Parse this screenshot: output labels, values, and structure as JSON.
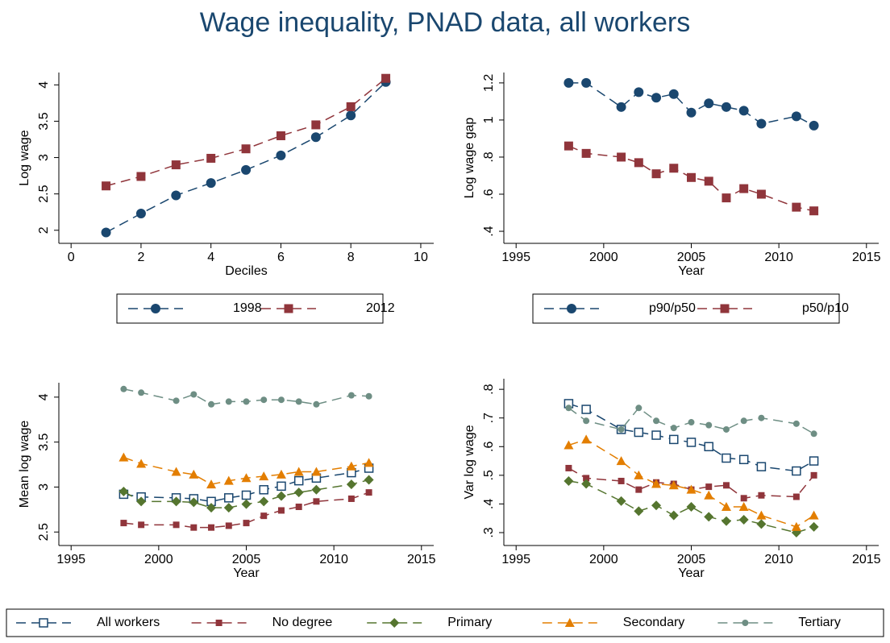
{
  "title": "Wage inequality, PNAD data, all workers",
  "chart_data": [
    {
      "type": "line",
      "xlabel": "Deciles",
      "ylabel": "Log wage",
      "legend": "below",
      "x": [
        1,
        2,
        3,
        4,
        5,
        6,
        7,
        8,
        9
      ],
      "xlim": [
        -0.35,
        10.37
      ],
      "xticks": [
        0,
        2,
        4,
        6,
        8,
        10
      ],
      "ylim": [
        1.82,
        4.17
      ],
      "yticks": [
        2,
        2.5,
        3,
        3.5,
        4
      ],
      "series": [
        {
          "name": "1998",
          "color": "#1a476f",
          "marker": "circle",
          "values": [
            1.97,
            2.23,
            2.48,
            2.65,
            2.83,
            3.03,
            3.28,
            3.58,
            4.04
          ]
        },
        {
          "name": "2012",
          "color": "#90353b",
          "marker": "square",
          "values": [
            2.61,
            2.74,
            2.9,
            2.99,
            3.12,
            3.3,
            3.45,
            3.7,
            4.09
          ]
        }
      ]
    },
    {
      "type": "line",
      "xlabel": "Year",
      "ylabel": "Log wage gap",
      "legend": "below",
      "x": [
        1998,
        1999,
        2001,
        2002,
        2003,
        2004,
        2005,
        2006,
        2007,
        2008,
        2009,
        2011,
        2012
      ],
      "xlim": [
        1994.3,
        2015.7
      ],
      "xticks": [
        1995,
        2000,
        2005,
        2010,
        2015
      ],
      "ylim": [
        0.335,
        1.256
      ],
      "yticks": [
        {
          "value": 0.4,
          "label": ".4"
        },
        {
          "value": 0.6,
          "label": ".6"
        },
        {
          "value": 0.8,
          "label": ".8"
        },
        1,
        1.2
      ],
      "series": [
        {
          "name": "p90/p50",
          "color": "#1a476f",
          "marker": "circle",
          "values": [
            1.2,
            1.2,
            1.07,
            1.15,
            1.12,
            1.14,
            1.04,
            1.09,
            1.07,
            1.05,
            0.98,
            1.02,
            0.97
          ]
        },
        {
          "name": "p50/p10",
          "color": "#90353b",
          "marker": "square",
          "values": [
            0.86,
            0.82,
            0.8,
            0.77,
            0.71,
            0.74,
            0.69,
            0.67,
            0.58,
            0.63,
            0.6,
            0.53,
            0.51
          ]
        }
      ]
    },
    {
      "type": "line",
      "xlabel": "Year",
      "ylabel": "Mean log wage",
      "legend": "page-bottom",
      "x": [
        1998,
        1999,
        2001,
        2002,
        2003,
        2004,
        2005,
        2006,
        2007,
        2008,
        2009,
        2011,
        2012
      ],
      "xlim": [
        1994.3,
        2015.7
      ],
      "xticks": [
        1995,
        2000,
        2005,
        2010,
        2015
      ],
      "ylim": [
        2.35,
        4.16
      ],
      "yticks": [
        2.5,
        3,
        3.5,
        4
      ],
      "series": [
        {
          "name": "All workers",
          "color": "#1a476f",
          "marker": "square-hollow",
          "values": [
            2.92,
            2.89,
            2.88,
            2.87,
            2.84,
            2.88,
            2.91,
            2.97,
            3.01,
            3.07,
            3.1,
            3.16,
            3.21
          ]
        },
        {
          "name": "No degree",
          "color": "#90353b",
          "marker": "square-small",
          "values": [
            2.6,
            2.58,
            2.58,
            2.55,
            2.55,
            2.57,
            2.6,
            2.68,
            2.74,
            2.78,
            2.84,
            2.87,
            2.94
          ]
        },
        {
          "name": "Primary",
          "color": "#55752f",
          "marker": "diamond",
          "values": [
            2.95,
            2.84,
            2.84,
            2.83,
            2.77,
            2.77,
            2.81,
            2.84,
            2.9,
            2.94,
            2.97,
            3.03,
            3.08
          ]
        },
        {
          "name": "Secondary",
          "color": "#e37e00",
          "marker": "triangle",
          "values": [
            3.33,
            3.26,
            3.17,
            3.14,
            3.03,
            3.07,
            3.1,
            3.12,
            3.14,
            3.17,
            3.17,
            3.23,
            3.27
          ]
        },
        {
          "name": "Tertiary",
          "color": "#6e8e84",
          "marker": "circle-small",
          "values": [
            4.09,
            4.05,
            3.96,
            4.03,
            3.92,
            3.95,
            3.95,
            3.97,
            3.97,
            3.95,
            3.92,
            4.02,
            4.01
          ]
        }
      ]
    },
    {
      "type": "line",
      "xlabel": "Year",
      "ylabel": "Var log wage",
      "legend": false,
      "x": [
        1998,
        1999,
        2001,
        2002,
        2003,
        2004,
        2005,
        2006,
        2007,
        2008,
        2009,
        2011,
        2012
      ],
      "xlim": [
        1994.3,
        2015.7
      ],
      "xticks": [
        1995,
        2000,
        2005,
        2010,
        2015
      ],
      "ylim": [
        0.255,
        0.837
      ],
      "yticks": [
        {
          "value": 0.3,
          "label": ".3"
        },
        {
          "value": 0.4,
          "label": ".4"
        },
        {
          "value": 0.5,
          "label": ".5"
        },
        {
          "value": 0.6,
          "label": ".6"
        },
        {
          "value": 0.7,
          "label": ".7"
        },
        {
          "value": 0.8,
          "label": ".8"
        }
      ],
      "series": [
        {
          "name": "All workers",
          "color": "#1a476f",
          "marker": "square-hollow",
          "values": [
            0.75,
            0.73,
            0.66,
            0.65,
            0.64,
            0.625,
            0.615,
            0.6,
            0.56,
            0.555,
            0.53,
            0.515,
            0.55
          ]
        },
        {
          "name": "No degree",
          "color": "#90353b",
          "marker": "square-small",
          "values": [
            0.525,
            0.49,
            0.48,
            0.45,
            0.475,
            0.47,
            0.45,
            0.46,
            0.465,
            0.42,
            0.43,
            0.425,
            0.5
          ]
        },
        {
          "name": "Primary",
          "color": "#55752f",
          "marker": "diamond",
          "values": [
            0.48,
            0.47,
            0.41,
            0.375,
            0.395,
            0.36,
            0.39,
            0.355,
            0.34,
            0.345,
            0.33,
            0.3,
            0.32
          ]
        },
        {
          "name": "Secondary",
          "color": "#e37e00",
          "marker": "triangle",
          "values": [
            0.605,
            0.625,
            0.55,
            0.5,
            0.47,
            0.465,
            0.45,
            0.43,
            0.39,
            0.39,
            0.36,
            0.32,
            0.36
          ]
        },
        {
          "name": "Tertiary",
          "color": "#6e8e84",
          "marker": "circle-small",
          "values": [
            0.735,
            0.69,
            0.66,
            0.735,
            0.69,
            0.665,
            0.685,
            0.675,
            0.66,
            0.69,
            0.7,
            0.68,
            0.645
          ]
        }
      ]
    }
  ]
}
